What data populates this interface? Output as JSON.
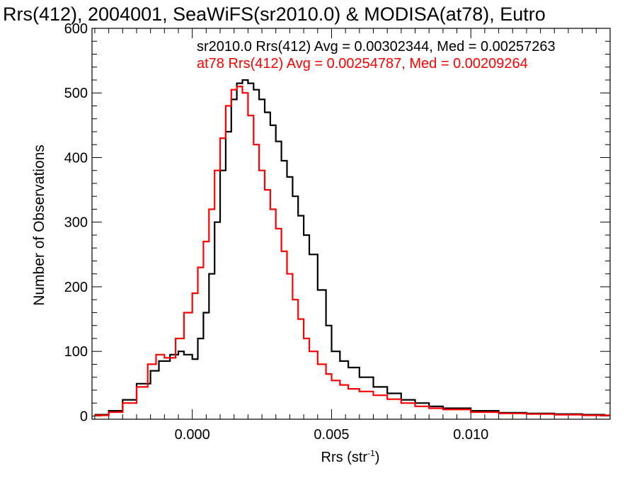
{
  "chart_data": {
    "type": "line",
    "title": "Rrs(412), 2004001, SeaWiFS(sr2010.0) & MODISA(at78), Eutro",
    "xlabel_base": "Rrs (str",
    "xlabel_sup": "-1",
    "xlabel_close": ")",
    "ylabel": "Number of Observations",
    "xlim": [
      -0.0036,
      0.015
    ],
    "ylim": [
      -5,
      600
    ],
    "xticks": [
      0.0,
      0.005,
      0.01
    ],
    "xtick_labels": [
      "0.000",
      "0.005",
      "0.010"
    ],
    "yticks": [
      0,
      100,
      200,
      300,
      400,
      500,
      600
    ],
    "ytick_labels": [
      "0",
      "100",
      "200",
      "300",
      "400",
      "500",
      "600"
    ],
    "grid": false,
    "legend_position": "top-right",
    "series": [
      {
        "name": "sr2010.0",
        "color": "#000000",
        "legend_text": "sr2010.0 Rrs(412) Avg = 0.00302344, Med = 0.00257263",
        "x": [
          -0.0035,
          -0.003,
          -0.0025,
          -0.002,
          -0.0015,
          -0.0012,
          -0.0008,
          -0.0005,
          -0.0003,
          0.0,
          0.0002,
          0.0004,
          0.0006,
          0.0008,
          0.001,
          0.0012,
          0.0014,
          0.0016,
          0.0018,
          0.002,
          0.0022,
          0.0024,
          0.0026,
          0.0028,
          0.003,
          0.0032,
          0.0034,
          0.0036,
          0.0038,
          0.004,
          0.0042,
          0.0045,
          0.0048,
          0.005,
          0.0053,
          0.0056,
          0.006,
          0.0065,
          0.007,
          0.0075,
          0.008,
          0.0085,
          0.009,
          0.01,
          0.011,
          0.012,
          0.013,
          0.014,
          0.0148
        ],
        "y": [
          2,
          8,
          25,
          50,
          70,
          85,
          95,
          100,
          95,
          88,
          120,
          160,
          220,
          300,
          380,
          440,
          490,
          515,
          520,
          515,
          505,
          490,
          470,
          450,
          425,
          395,
          370,
          340,
          310,
          280,
          250,
          195,
          140,
          100,
          85,
          75,
          60,
          45,
          35,
          25,
          20,
          15,
          12,
          8,
          5,
          4,
          3,
          2,
          1
        ]
      },
      {
        "name": "at78",
        "color": "#ff0000",
        "legend_text": "at78 Rrs(412) Avg = 0.00254787, Med = 0.00209264",
        "x": [
          -0.0035,
          -0.003,
          -0.0025,
          -0.002,
          -0.0016,
          -0.0013,
          -0.001,
          -0.0006,
          -0.0003,
          0.0,
          0.0002,
          0.0004,
          0.0006,
          0.0008,
          0.001,
          0.0012,
          0.0014,
          0.0016,
          0.0018,
          0.002,
          0.0022,
          0.0024,
          0.0026,
          0.0028,
          0.003,
          0.0032,
          0.0034,
          0.0036,
          0.0038,
          0.004,
          0.0042,
          0.0045,
          0.0048,
          0.005,
          0.0053,
          0.0056,
          0.006,
          0.0065,
          0.007,
          0.0075,
          0.008,
          0.0085,
          0.009,
          0.01,
          0.011,
          0.012,
          0.013,
          0.014,
          0.0148
        ],
        "y": [
          1,
          6,
          20,
          45,
          80,
          95,
          90,
          120,
          160,
          190,
          230,
          270,
          320,
          380,
          430,
          480,
          505,
          510,
          500,
          465,
          420,
          380,
          350,
          320,
          290,
          255,
          220,
          180,
          150,
          120,
          100,
          80,
          65,
          55,
          48,
          42,
          38,
          32,
          26,
          20,
          15,
          12,
          10,
          6,
          4,
          3,
          2,
          1,
          1
        ]
      }
    ]
  }
}
